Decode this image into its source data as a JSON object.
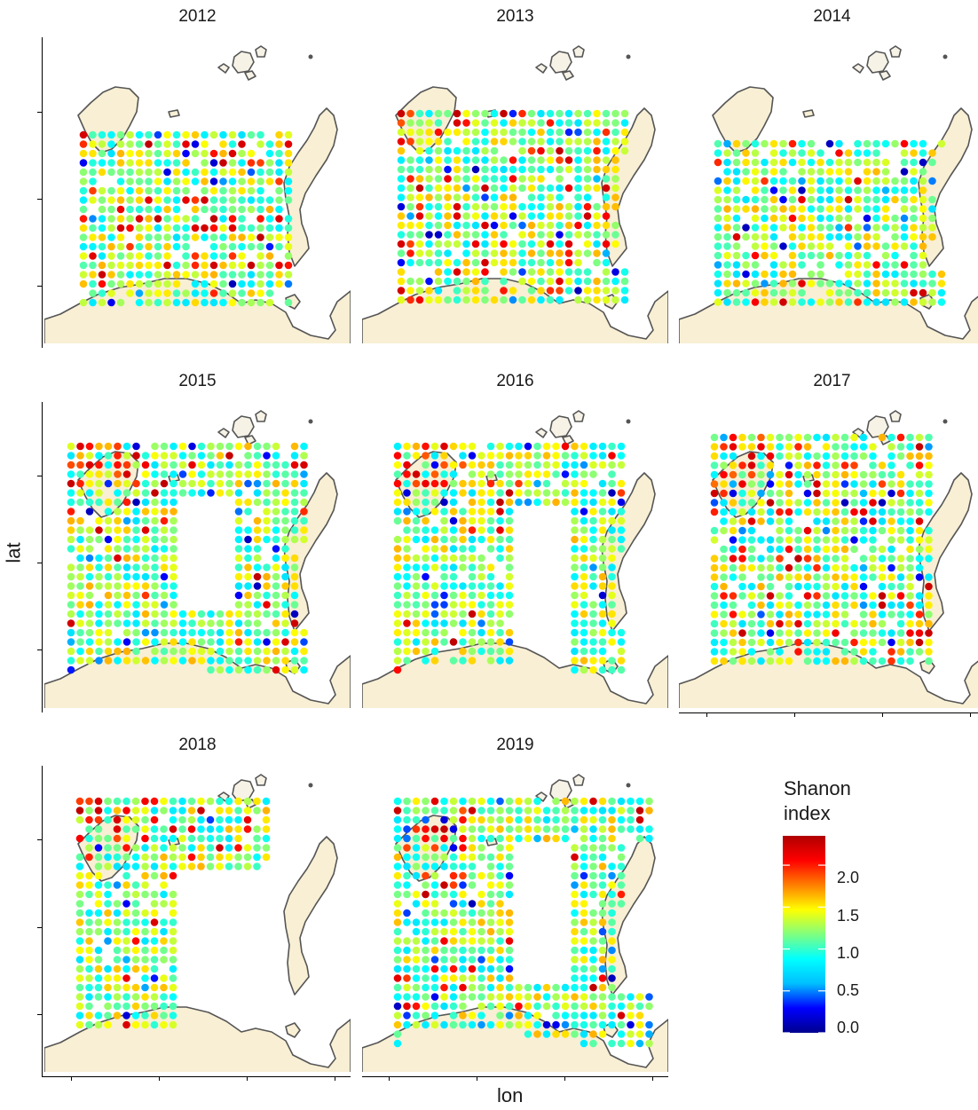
{
  "chart_data": {
    "type": "scatter",
    "layout": "faceted map panels",
    "xlabel": "lon",
    "ylabel": "lat",
    "panels": [
      {
        "title": "2012",
        "coverage": "dense grid across full sea, many high values along northwest island coasts"
      },
      {
        "title": "2013",
        "coverage": "dense grid across full sea, high values near island coasts"
      },
      {
        "title": "2014",
        "coverage": "grid across sea, few stations near islands"
      },
      {
        "title": "2015",
        "coverage": "grid with central gap, low values along eastern edge"
      },
      {
        "title": "2016",
        "coverage": "grid with large eastern gap, low values in east"
      },
      {
        "title": "2017",
        "coverage": "dense grid, high values in north"
      },
      {
        "title": "2018",
        "coverage": "western grid only, eastern sea unsampled"
      },
      {
        "title": "2019",
        "coverage": "grid with central-eastern gap"
      }
    ],
    "legend": {
      "title": "Shanon\nindex",
      "title_lines": [
        "Shanon",
        "index"
      ],
      "ticks": [
        "2.0",
        "1.5",
        "1.0",
        "0.5",
        "0.0"
      ],
      "range": [
        0,
        2.35
      ],
      "colormap": [
        "#00008f",
        "#0000ff",
        "#00bfff",
        "#00ffff",
        "#7fff7f",
        "#ffff00",
        "#ff7f00",
        "#ff0000",
        "#b00000"
      ]
    }
  },
  "colors": {
    "land": "#f8efd4",
    "coast": "#555555",
    "background": "#ffffff"
  }
}
